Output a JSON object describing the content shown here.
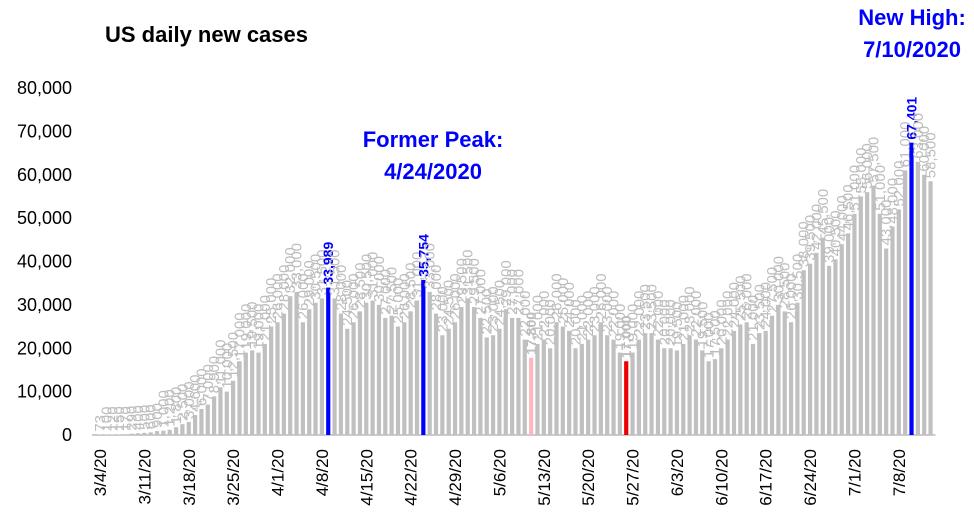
{
  "chart_data": {
    "type": "bar",
    "title": "US daily new cases",
    "annotations": [
      {
        "lines": [
          "Former Peak:",
          "4/24/2020"
        ],
        "color": "#0000ff"
      },
      {
        "lines": [
          "New High:",
          "7/10/2020"
        ],
        "color": "#0000ff"
      }
    ],
    "categories": [
      "3/4/20",
      null,
      null,
      null,
      null,
      null,
      null,
      "3/11/20",
      null,
      null,
      null,
      null,
      null,
      null,
      "3/18/20",
      null,
      null,
      null,
      null,
      null,
      null,
      "3/25/20",
      null,
      null,
      null,
      null,
      null,
      null,
      "4/1/20",
      null,
      null,
      null,
      null,
      null,
      null,
      "4/8/20",
      null,
      null,
      null,
      null,
      null,
      null,
      "4/15/20",
      null,
      null,
      null,
      null,
      null,
      null,
      "4/22/20",
      null,
      null,
      null,
      null,
      null,
      null,
      "4/29/20",
      null,
      null,
      null,
      null,
      null,
      null,
      "5/6/20",
      null,
      null,
      null,
      null,
      null,
      null,
      "5/13/20",
      null,
      null,
      null,
      null,
      null,
      null,
      "5/20/20",
      null,
      null,
      null,
      null,
      null,
      null,
      "5/27/20",
      null,
      null,
      null,
      null,
      null,
      null,
      "6/3/20",
      null,
      null,
      null,
      null,
      null,
      null,
      "6/10/20",
      null,
      null,
      null,
      null,
      null,
      null,
      "6/17/20",
      null,
      null,
      null,
      null,
      null,
      null,
      "6/24/20",
      null,
      null,
      null,
      null,
      null,
      null,
      "7/1/20",
      null,
      null,
      null,
      null,
      null,
      null,
      "7/8/20",
      null,
      null,
      null,
      null,
      null
    ],
    "values": [
      73,
      100,
      120,
      150,
      170,
      290,
      400,
      500,
      600,
      900,
      1000,
      1200,
      1800,
      2500,
      3000,
      4600,
      6000,
      7000,
      8900,
      11000,
      10000,
      12500,
      17000,
      19000,
      19500,
      19000,
      21000,
      25000,
      26000,
      28000,
      32000,
      33000,
      26000,
      29000,
      30500,
      31500,
      33989,
      31500,
      28000,
      24500,
      26000,
      28500,
      30500,
      31000,
      30000,
      27000,
      27500,
      25000,
      26000,
      28500,
      31000,
      35754,
      33000,
      28000,
      23000,
      24500,
      26000,
      29500,
      31500,
      29500,
      27000,
      22500,
      23000,
      24500,
      29000,
      27000,
      27000,
      22000,
      17800,
      21000,
      22000,
      20000,
      26000,
      25000,
      24000,
      20000,
      21000,
      22000,
      23000,
      26000,
      23000,
      22000,
      19000,
      17000,
      19000,
      22000,
      23500,
      23500,
      22000,
      20000,
      20000,
      19500,
      21000,
      23000,
      22000,
      19500,
      17000,
      17500,
      20000,
      22000,
      24000,
      25500,
      26000,
      21000,
      23500,
      24000,
      27500,
      30000,
      28500,
      26000,
      30500,
      38000,
      39500,
      42000,
      45500,
      39000,
      40500,
      44000,
      46500,
      51000,
      55000,
      56000,
      57500,
      51000,
      43000,
      48000,
      52000,
      61000,
      67401,
      63000,
      60000,
      58500
    ],
    "value_labels": [
      "73",
      "100",
      "120",
      "150",
      "170",
      "290",
      "400",
      "500",
      "600",
      "900",
      "1,000",
      "1,200",
      "1,800",
      "2,500",
      "3,000",
      "4,600",
      "6,000",
      "7,000",
      "8,900",
      "11,000",
      "10,000",
      "12,500",
      "17,000",
      "19,000",
      "19,500",
      "19,000",
      "21,000",
      "25,000",
      "26,000",
      "28,000",
      "32,000",
      "33,000",
      "26,000",
      "29,000",
      "30,500",
      "31,500",
      "33,989",
      "31,500",
      "28,000",
      "24,500",
      "26,000",
      "28,500",
      "30,500",
      "31,000",
      "30,000",
      "27,000",
      "27,500",
      "25,000",
      "26,000",
      "28,500",
      "31,000",
      "35,754",
      "33,000",
      "28,000",
      "23,000",
      "24,500",
      "26,000",
      "29,500",
      "31,500",
      "29,500",
      "27,000",
      "22,500",
      "23,000",
      "24,500",
      "29,000",
      "27,000",
      "27,000",
      "22,000",
      "17,800",
      "21,000",
      "22,000",
      "20,000",
      "26,000",
      "25,000",
      "24,000",
      "20,000",
      "21,000",
      "22,000",
      "23,000",
      "26,000",
      "23,000",
      "22,000",
      "19,000",
      "17,000",
      "19,000",
      "22,000",
      "23,500",
      "23,500",
      "22,000",
      "20,000",
      "20,000",
      "19,500",
      "21,000",
      "23,000",
      "22,000",
      "19,500",
      "17,000",
      "17,500",
      "20,000",
      "22,000",
      "24,000",
      "25,500",
      "26,000",
      "21,000",
      "23,500",
      "24,000",
      "27,500",
      "30,000",
      "28,500",
      "26,000",
      "30,500",
      "38,000",
      "39,500",
      "42,000",
      "45,500",
      "39,000",
      "40,500",
      "44,000",
      "46,500",
      "51,000",
      "55,000",
      "56,000",
      "57,500",
      "51,000",
      "43,000",
      "48,000",
      "52,000",
      "61,000",
      "67,401",
      "63,000",
      "60,000",
      "58,500"
    ],
    "colors": [
      "#c0c0c0",
      "#c0c0c0",
      "#c0c0c0",
      "#c0c0c0",
      "#c0c0c0",
      "#c0c0c0",
      "#c0c0c0",
      "#c0c0c0",
      "#c0c0c0",
      "#c0c0c0",
      "#c0c0c0",
      "#c0c0c0",
      "#c0c0c0",
      "#c0c0c0",
      "#c0c0c0",
      "#c0c0c0",
      "#c0c0c0",
      "#c0c0c0",
      "#c0c0c0",
      "#c0c0c0",
      "#c0c0c0",
      "#c0c0c0",
      "#c0c0c0",
      "#c0c0c0",
      "#c0c0c0",
      "#c0c0c0",
      "#c0c0c0",
      "#c0c0c0",
      "#c0c0c0",
      "#c0c0c0",
      "#c0c0c0",
      "#c0c0c0",
      "#c0c0c0",
      "#c0c0c0",
      "#c0c0c0",
      "#c0c0c0",
      "#0000ff",
      "#c0c0c0",
      "#c0c0c0",
      "#c0c0c0",
      "#c0c0c0",
      "#c0c0c0",
      "#c0c0c0",
      "#c0c0c0",
      "#c0c0c0",
      "#c0c0c0",
      "#c0c0c0",
      "#c0c0c0",
      "#c0c0c0",
      "#c0c0c0",
      "#c0c0c0",
      "#0000ff",
      "#c0c0c0",
      "#c0c0c0",
      "#c0c0c0",
      "#c0c0c0",
      "#c0c0c0",
      "#c0c0c0",
      "#c0c0c0",
      "#c0c0c0",
      "#c0c0c0",
      "#c0c0c0",
      "#c0c0c0",
      "#c0c0c0",
      "#c0c0c0",
      "#c0c0c0",
      "#c0c0c0",
      "#c0c0c0",
      "#ffb6c1",
      "#c0c0c0",
      "#c0c0c0",
      "#c0c0c0",
      "#c0c0c0",
      "#c0c0c0",
      "#c0c0c0",
      "#c0c0c0",
      "#c0c0c0",
      "#c0c0c0",
      "#c0c0c0",
      "#c0c0c0",
      "#c0c0c0",
      "#c0c0c0",
      "#c0c0c0",
      "#ee0000",
      "#c0c0c0",
      "#c0c0c0",
      "#c0c0c0",
      "#c0c0c0",
      "#c0c0c0",
      "#c0c0c0",
      "#c0c0c0",
      "#c0c0c0",
      "#c0c0c0",
      "#c0c0c0",
      "#c0c0c0",
      "#c0c0c0",
      "#c0c0c0",
      "#c0c0c0",
      "#c0c0c0",
      "#c0c0c0",
      "#c0c0c0",
      "#c0c0c0",
      "#c0c0c0",
      "#c0c0c0",
      "#c0c0c0",
      "#c0c0c0",
      "#c0c0c0",
      "#c0c0c0",
      "#c0c0c0",
      "#c0c0c0",
      "#c0c0c0",
      "#c0c0c0",
      "#c0c0c0",
      "#c0c0c0",
      "#c0c0c0",
      "#c0c0c0",
      "#c0c0c0",
      "#c0c0c0",
      "#c0c0c0",
      "#c0c0c0",
      "#c0c0c0",
      "#c0c0c0",
      "#c0c0c0",
      "#c0c0c0",
      "#c0c0c0",
      "#c0c0c0",
      "#c0c0c0",
      "#c0c0c0",
      "#0000ff",
      "#c0c0c0",
      "#c0c0c0",
      "#c0c0c0"
    ],
    "ylim": [
      0,
      80000
    ],
    "yticks": [
      0,
      {
        "value": 10000,
        "label": "10,000"
      },
      {
        "value": 20000,
        "label": "20,000"
      },
      {
        "value": 30000,
        "label": "30,000"
      },
      {
        "value": 40000,
        "label": "40,000"
      },
      {
        "value": 50000,
        "label": "50,000"
      },
      {
        "value": 60000,
        "label": "60,000"
      },
      {
        "value": 70000,
        "label": "70,000"
      },
      {
        "value": 80000,
        "label": "80,000"
      }
    ],
    "grid": false
  }
}
